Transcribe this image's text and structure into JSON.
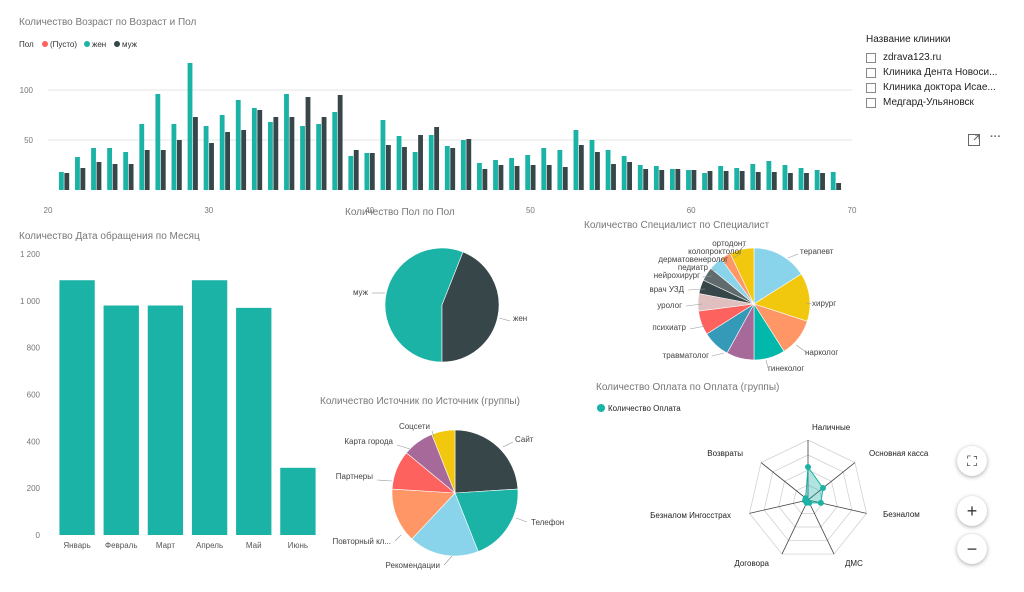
{
  "colors": {
    "teal": "#1ab3a6",
    "dark": "#374649",
    "red": "#fd625e",
    "grid": "#e6e6e6",
    "axis": "#777777"
  },
  "toolbar": {
    "focus_icon": "focus-mode-icon",
    "more_label": "···"
  },
  "slicer": {
    "title": "Название клиники",
    "items": [
      "zdrava123.ru",
      "Клиника Дента Новоси...",
      "Клиника доктора Исае...",
      "Медгард-Ульяновск"
    ]
  },
  "map_controls": {
    "fullscreen": "⛶",
    "zoom_in": "+",
    "zoom_out": "−"
  },
  "chart_data": [
    {
      "type": "bar",
      "title": "Количество Возраст по Возраст и Пол",
      "legend_title": "Пол",
      "legend": [
        "(Пусто)",
        "жен",
        "муж"
      ],
      "xlabel": "",
      "ylabel": "",
      "xticks": [
        20,
        30,
        40,
        50,
        60,
        70
      ],
      "yticks": [
        50,
        100
      ],
      "xlim": [
        20,
        70
      ],
      "ylim": [
        0,
        135
      ],
      "x": [
        21,
        22,
        23,
        24,
        25,
        26,
        27,
        28,
        29,
        30,
        31,
        32,
        33,
        34,
        35,
        36,
        37,
        38,
        39,
        40,
        41,
        42,
        43,
        44,
        45,
        46,
        47,
        48,
        49,
        50,
        51,
        52,
        53,
        54,
        55,
        56,
        57,
        58,
        59,
        60,
        61,
        62,
        63,
        64,
        65,
        66,
        67,
        68,
        69
      ],
      "series": [
        {
          "name": "жен",
          "values": [
            18,
            33,
            42,
            42,
            38,
            66,
            96,
            66,
            127,
            64,
            75,
            90,
            82,
            68,
            96,
            64,
            66,
            78,
            34,
            37,
            70,
            54,
            38,
            55,
            44,
            50,
            27,
            30,
            32,
            35,
            42,
            40,
            60,
            50,
            40,
            34,
            25,
            24,
            21,
            20,
            17,
            24,
            22,
            26,
            29,
            25,
            22,
            20,
            18
          ]
        },
        {
          "name": "муж",
          "values": [
            17,
            22,
            28,
            26,
            26,
            40,
            40,
            50,
            73,
            47,
            58,
            60,
            80,
            73,
            73,
            93,
            73,
            95,
            40,
            37,
            45,
            43,
            55,
            63,
            42,
            51,
            21,
            25,
            24,
            25,
            25,
            23,
            45,
            38,
            26,
            28,
            21,
            20,
            21,
            20,
            19,
            19,
            19,
            18,
            18,
            17,
            17,
            17,
            7
          ]
        }
      ]
    },
    {
      "type": "bar",
      "title": "Количество Дата обращения по Месяц",
      "categories": [
        "Январь",
        "Февраль",
        "Март",
        "Апрель",
        "Май",
        "Июнь"
      ],
      "values": [
        1088,
        980,
        980,
        1088,
        970,
        287
      ],
      "yticks": [
        "0",
        "200",
        "400",
        "600",
        "800",
        "1 000",
        "1 200"
      ],
      "ylim": [
        0,
        1200
      ]
    },
    {
      "type": "pie",
      "title": "Количество Пол по Пол",
      "labels": [
        "жен",
        "муж"
      ],
      "values": [
        56,
        44
      ]
    },
    {
      "type": "pie",
      "title": "Количество Специалист по Специалист",
      "labels": [
        "терапевт",
        "хирург",
        "нарколог",
        "гинеколог",
        "травматолог",
        "психиатр",
        "уролог",
        "врач УЗД",
        "нейрохирург",
        "педиатр",
        "дерматовенеролог",
        "колопроктолог",
        "ортодонт"
      ],
      "values": [
        16,
        14,
        11,
        9,
        8,
        8,
        7,
        5,
        4,
        4,
        4,
        3,
        7
      ]
    },
    {
      "type": "pie",
      "title": "Количество Источник по Источник (группы)",
      "labels": [
        "Сайт",
        "Телефон",
        "Рекомендации",
        "Повторный кл...",
        "Партнеры",
        "Карта города",
        "Соцсети"
      ],
      "values": [
        24,
        20,
        18,
        14,
        10,
        8,
        6
      ]
    },
    {
      "type": "radar",
      "title": "Количество Оплата по Оплата (группы)",
      "legend": [
        "Количество Оплата"
      ],
      "axes": [
        "Наличные",
        "Основная касса",
        "Безналом",
        "ДМС",
        "Договора",
        "Безналом Ингосстрах",
        "Возвраты"
      ],
      "values": [
        55,
        32,
        22,
        5,
        5,
        5,
        5
      ],
      "max": 100
    }
  ]
}
